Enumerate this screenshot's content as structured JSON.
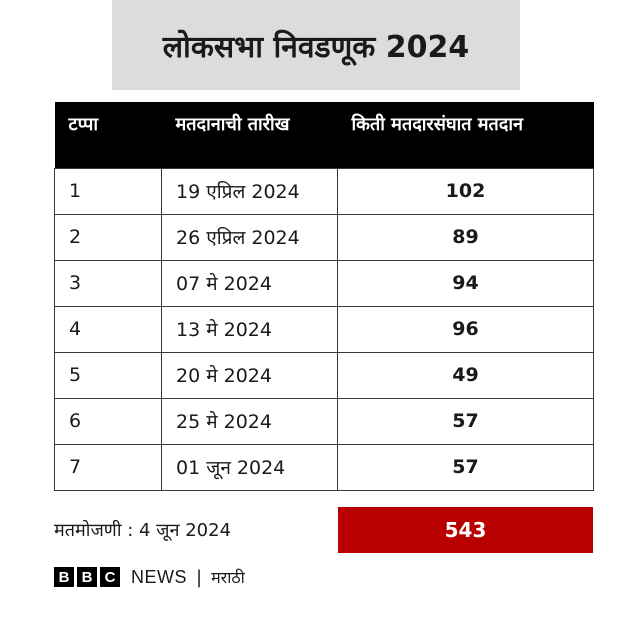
{
  "title": "लोकसभा निवडणूक 2024",
  "table": {
    "headers": [
      "टप्पा",
      "मतदानाची तारीख",
      "किती मतदारसंघात मतदान"
    ],
    "rows": [
      {
        "phase": "1",
        "date": "19 एप्रिल 2024",
        "count": "102"
      },
      {
        "phase": "2",
        "date": "26 एप्रिल 2024",
        "count": "89"
      },
      {
        "phase": "3",
        "date": "07 मे 2024",
        "count": "94"
      },
      {
        "phase": "4",
        "date": "13 मे 2024",
        "count": "96"
      },
      {
        "phase": "5",
        "date": "20 मे 2024",
        "count": "49"
      },
      {
        "phase": "6",
        "date": "25 मे 2024",
        "count": "57"
      },
      {
        "phase": "7",
        "date": "01 जून 2024",
        "count": "57"
      }
    ]
  },
  "footer": {
    "counting_label": "मतमोजणी : 4 जून 2024",
    "total": "543"
  },
  "brand": {
    "bbc_letters": [
      "B",
      "B",
      "C"
    ],
    "news": "NEWS",
    "separator": "|",
    "language": "मराठी"
  },
  "colors": {
    "header_bg": "#000000",
    "title_bg": "#dcdcdc",
    "total_bg": "#b80000"
  }
}
